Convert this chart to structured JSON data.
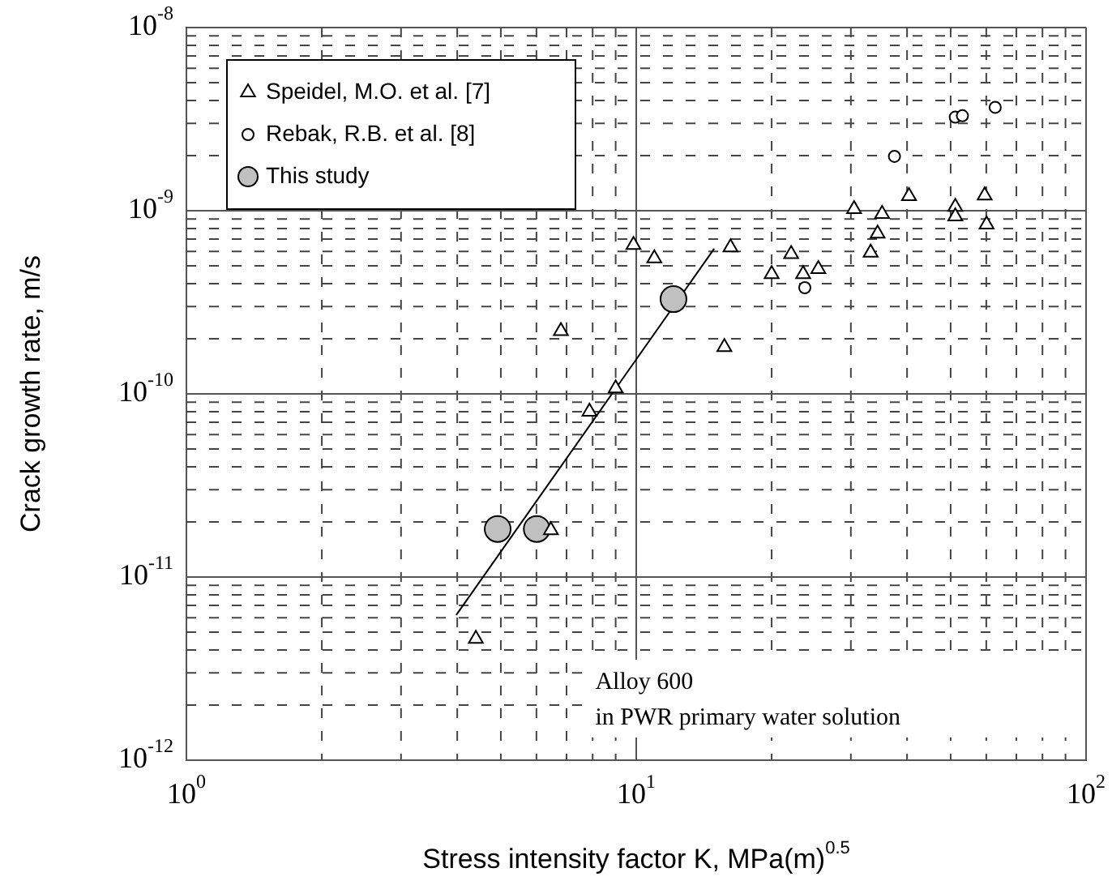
{
  "chart_data": {
    "type": "scatter",
    "xlabel": "Stress intensity factor K, MPa(m)$^{0.5}$",
    "ylabel": "Crack growth rate, m/s",
    "log": "xy",
    "grid": true,
    "legend": "top left",
    "xlim": [
      1,
      100
    ],
    "ylim": [
      1e-12,
      1e-08
    ],
    "xticks": [
      {
        "value": 1,
        "label": "10$^{0}$"
      },
      {
        "value": 2,
        "label": null
      },
      {
        "value": 3,
        "label": null
      },
      {
        "value": 4,
        "label": null
      },
      {
        "value": 5,
        "label": null
      },
      {
        "value": 6,
        "label": null
      },
      {
        "value": 7,
        "label": null
      },
      {
        "value": 8,
        "label": null
      },
      {
        "value": 9,
        "label": null
      },
      {
        "value": 10,
        "label": "10$^{1}$"
      },
      {
        "value": 20,
        "label": null
      },
      {
        "value": 30,
        "label": null
      },
      {
        "value": 40,
        "label": null
      },
      {
        "value": 50,
        "label": null
      },
      {
        "value": 60,
        "label": null
      },
      {
        "value": 70,
        "label": null
      },
      {
        "value": 80,
        "label": null
      },
      {
        "value": 90,
        "label": null
      },
      {
        "value": 100,
        "label": "10$^{2}$"
      }
    ],
    "yticks": [
      {
        "value": 1e-12,
        "label": "10$^{-12}$"
      },
      {
        "value": 2e-12,
        "label": null
      },
      {
        "value": 3e-12,
        "label": null
      },
      {
        "value": 4e-12,
        "label": null
      },
      {
        "value": 5e-12,
        "label": null
      },
      {
        "value": 6e-12,
        "label": null
      },
      {
        "value": 7e-12,
        "label": null
      },
      {
        "value": 8e-12,
        "label": null
      },
      {
        "value": 9e-12,
        "label": null
      },
      {
        "value": 1e-11,
        "label": "10$^{-11}$"
      },
      {
        "value": 2e-11,
        "label": null
      },
      {
        "value": 3e-11,
        "label": null
      },
      {
        "value": 4e-11,
        "label": null
      },
      {
        "value": 5e-11,
        "label": null
      },
      {
        "value": 6e-11,
        "label": null
      },
      {
        "value": 7e-11,
        "label": null
      },
      {
        "value": 8e-11,
        "label": null
      },
      {
        "value": 9e-11,
        "label": null
      },
      {
        "value": 1e-10,
        "label": "10$^{-10}$"
      },
      {
        "value": 2e-10,
        "label": null
      },
      {
        "value": 3e-10,
        "label": null
      },
      {
        "value": 4e-10,
        "label": null
      },
      {
        "value": 5e-10,
        "label": null
      },
      {
        "value": 6e-10,
        "label": null
      },
      {
        "value": 7e-10,
        "label": null
      },
      {
        "value": 8e-10,
        "label": null
      },
      {
        "value": 9e-10,
        "label": null
      },
      {
        "value": 1e-09,
        "label": "10$^{-9}$"
      },
      {
        "value": 2e-09,
        "label": null
      },
      {
        "value": 3e-09,
        "label": null
      },
      {
        "value": 4e-09,
        "label": null
      },
      {
        "value": 5e-09,
        "label": null
      },
      {
        "value": 6e-09,
        "label": null
      },
      {
        "value": 7e-09,
        "label": null
      },
      {
        "value": 8e-09,
        "label": null
      },
      {
        "value": 9e-09,
        "label": null
      },
      {
        "value": 1e-08,
        "label": "10$^{-8}$"
      }
    ],
    "annotations": [
      "Alloy 600",
      "in PWR primary water solution"
    ],
    "series": [
      {
        "name": "Speidel, M.O. et al. [7]",
        "marker": "triangle",
        "color": "#000000",
        "x": [
          4.4,
          6.46,
          6.8,
          7.87,
          9.0,
          9.86,
          10.97,
          15.7,
          16.2,
          20.0,
          22.1,
          23.5,
          25.4,
          30.5,
          33.2,
          34.4,
          35.2,
          40.4,
          51.2,
          51.2,
          59.5,
          60.1
        ],
        "values": [
          4.6e-12,
          1.8e-11,
          2.2e-10,
          8e-11,
          1.07e-10,
          6.5e-10,
          5.5e-10,
          1.8e-10,
          6.3e-10,
          4.5e-10,
          5.8e-10,
          4.5e-10,
          4.8e-10,
          1.02e-09,
          5.9e-10,
          7.5e-10,
          9.6e-10,
          1.2e-09,
          1.05e-09,
          9.3e-10,
          1.21e-09,
          8.4e-10
        ]
      },
      {
        "name": "Rebak, R.B. et al. [8]",
        "marker": "circle",
        "color": "#000000",
        "x": [
          23.7,
          37.5,
          51.2,
          53.1,
          62.8
        ],
        "values": [
          3.8e-10,
          1.98e-09,
          3.24e-09,
          3.3e-09,
          3.67e-09
        ]
      },
      {
        "name": "This study",
        "marker": "circle",
        "color": "#c0c0c0",
        "x": [
          4.92,
          6.01,
          12.1
        ],
        "values": [
          1.83e-11,
          1.83e-11,
          3.29e-10
        ]
      },
      {
        "type": "line",
        "marker": "none",
        "color": "#000000",
        "x": [
          3.98,
          14.9
        ],
        "values": [
          6.2e-12,
          6.2e-10
        ]
      }
    ]
  }
}
